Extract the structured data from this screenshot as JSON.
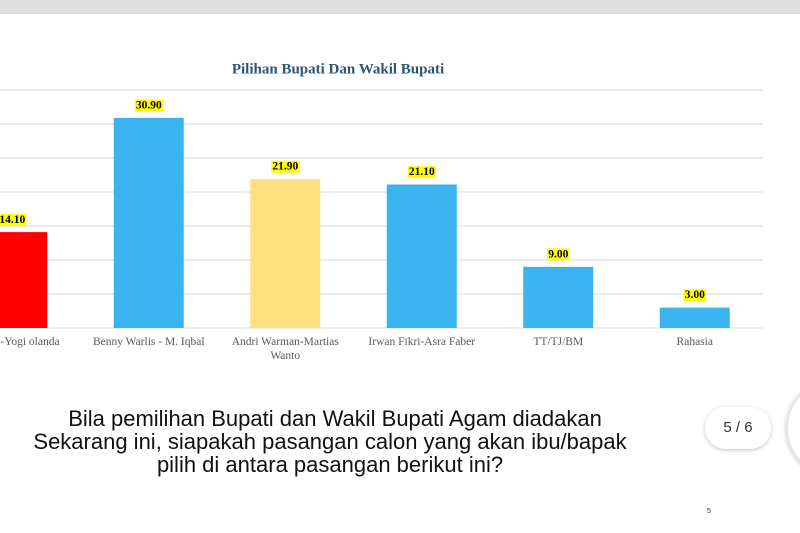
{
  "chart_data": {
    "type": "bar",
    "title": "Pilihan Bupati Dan Wakil Bupati",
    "categories": [
      "di Gaus-Yogi olanda",
      "Benny Warlis - M. Iqbal",
      "Andri Warman-Martias Wanto",
      "Irwan Fikri-Asra Faber",
      "TT/TJ/BM",
      "Rahasia"
    ],
    "values": [
      14.1,
      30.9,
      21.9,
      21.1,
      9,
      3
    ],
    "value_labels": [
      "14.10",
      "30.90",
      "21.90",
      "21.10",
      "9.00",
      "3.00"
    ],
    "colors": [
      "#ff0000",
      "#3bb3ef",
      "#ffdf7e",
      "#3bb3ef",
      "#3bb3ef",
      "#3bb3ef"
    ],
    "ylim": [
      0,
      35
    ],
    "yticks": [
      0,
      5,
      10,
      15,
      20,
      25,
      30,
      35
    ],
    "grid": true
  },
  "question": [
    "Bila pemilihan Bupati dan Wakil Bupati Agam diadakan",
    "Sekarang ini, siapakah pasangan calon yang akan ibu/bapak",
    "pilih di antara pasangan berikut ini?"
  ],
  "pager": "5 / 6",
  "page_number": "5"
}
